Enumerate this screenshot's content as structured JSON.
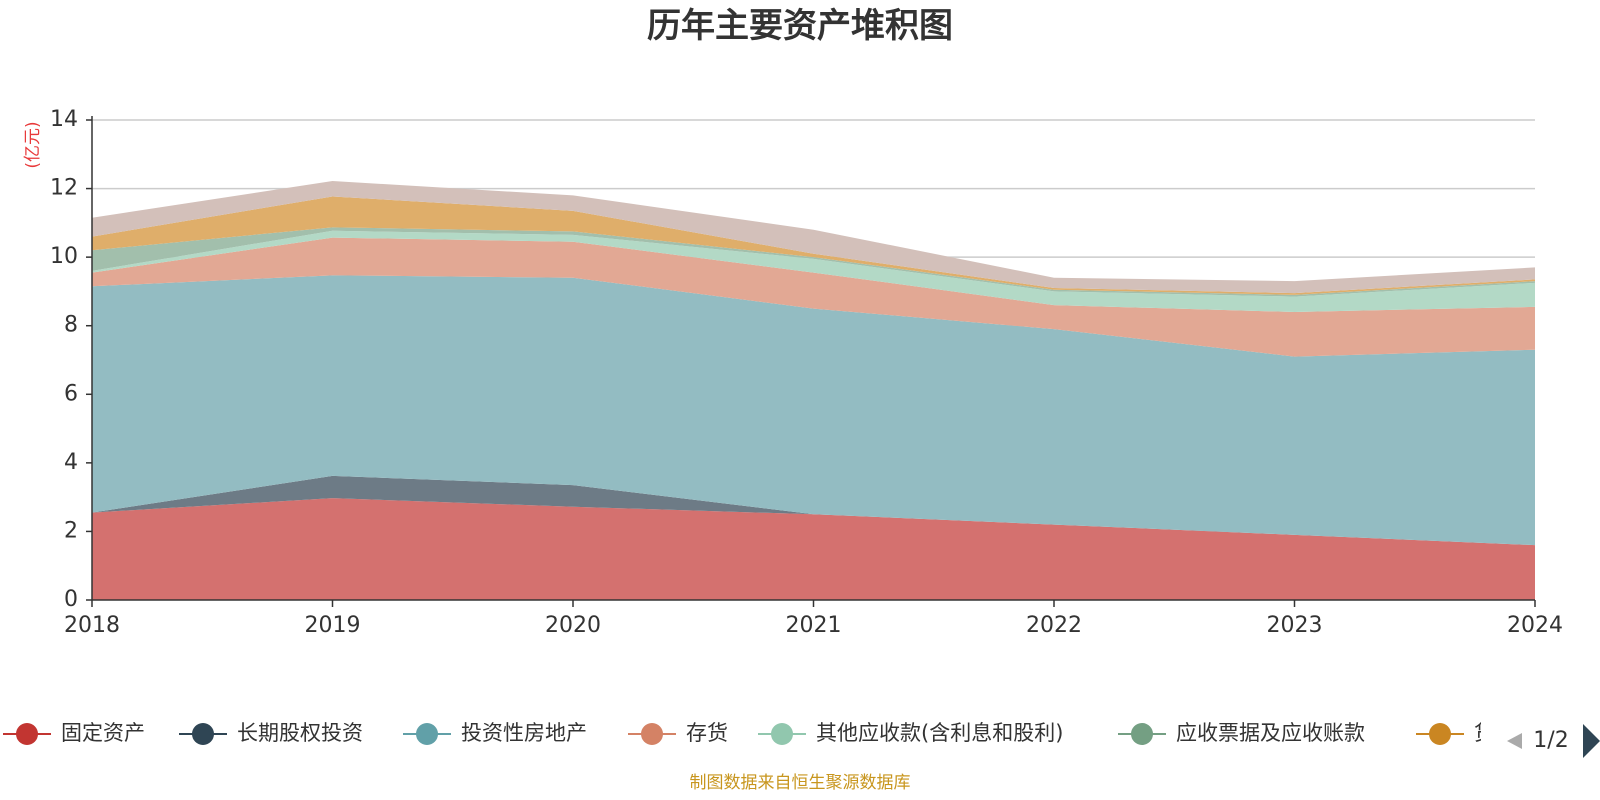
{
  "chart_data": {
    "type": "area",
    "stacked": true,
    "title": "历年主要资产堆积图",
    "ylabel": "(亿元)",
    "ylim": [
      0,
      14
    ],
    "yticks": [
      0,
      2,
      4,
      6,
      8,
      10,
      12,
      14
    ],
    "grid": true,
    "legend_position": "bottom",
    "categories": [
      "2018",
      "2019",
      "2020",
      "2021",
      "2022",
      "2023",
      "2024"
    ],
    "series": [
      {
        "name": "固定资产",
        "color": "#c23531",
        "fill": "#d4716f",
        "values": [
          2.55,
          2.97,
          2.72,
          2.5,
          2.2,
          1.9,
          1.6
        ]
      },
      {
        "name": "长期股权投资",
        "color": "#2f4554",
        "fill": "#6d7b86",
        "values": [
          0.0,
          0.65,
          0.63,
          0.0,
          0.0,
          0.0,
          0.0
        ]
      },
      {
        "name": "投资性房地产",
        "color": "#61a0a8",
        "fill": "#93bcc2",
        "values": [
          6.6,
          5.85,
          6.05,
          6.0,
          5.7,
          5.2,
          5.7
        ]
      },
      {
        "name": "存货",
        "color": "#d48265",
        "fill": "#e2a894",
        "values": [
          0.4,
          1.1,
          1.05,
          1.05,
          0.7,
          1.3,
          1.25
        ]
      },
      {
        "name": "其他应收款(含利息和股利)",
        "color": "#91c7ae",
        "fill": "#b3d9c6",
        "values": [
          0.05,
          0.2,
          0.2,
          0.4,
          0.4,
          0.45,
          0.7
        ]
      },
      {
        "name": "应收票据及应收账款",
        "color": "#749f83",
        "fill": "#a2bfac",
        "values": [
          0.6,
          0.1,
          0.1,
          0.05,
          0.05,
          0.05,
          0.05
        ]
      },
      {
        "name": "",
        "color": "#ca8622",
        "fill": "#dfae6a",
        "values": [
          0.4,
          0.9,
          0.6,
          0.1,
          0.05,
          0.05,
          0.05
        ]
      },
      {
        "name": "",
        "color": "#bda29a",
        "fill": "#d3c0ba",
        "values": [
          0.55,
          0.45,
          0.45,
          0.7,
          0.3,
          0.35,
          0.35
        ]
      }
    ]
  },
  "legend": {
    "page_indicator": "1/2",
    "truncated_label": "货"
  },
  "footer": {
    "source": "制图数据来自恒生聚源数据库"
  }
}
